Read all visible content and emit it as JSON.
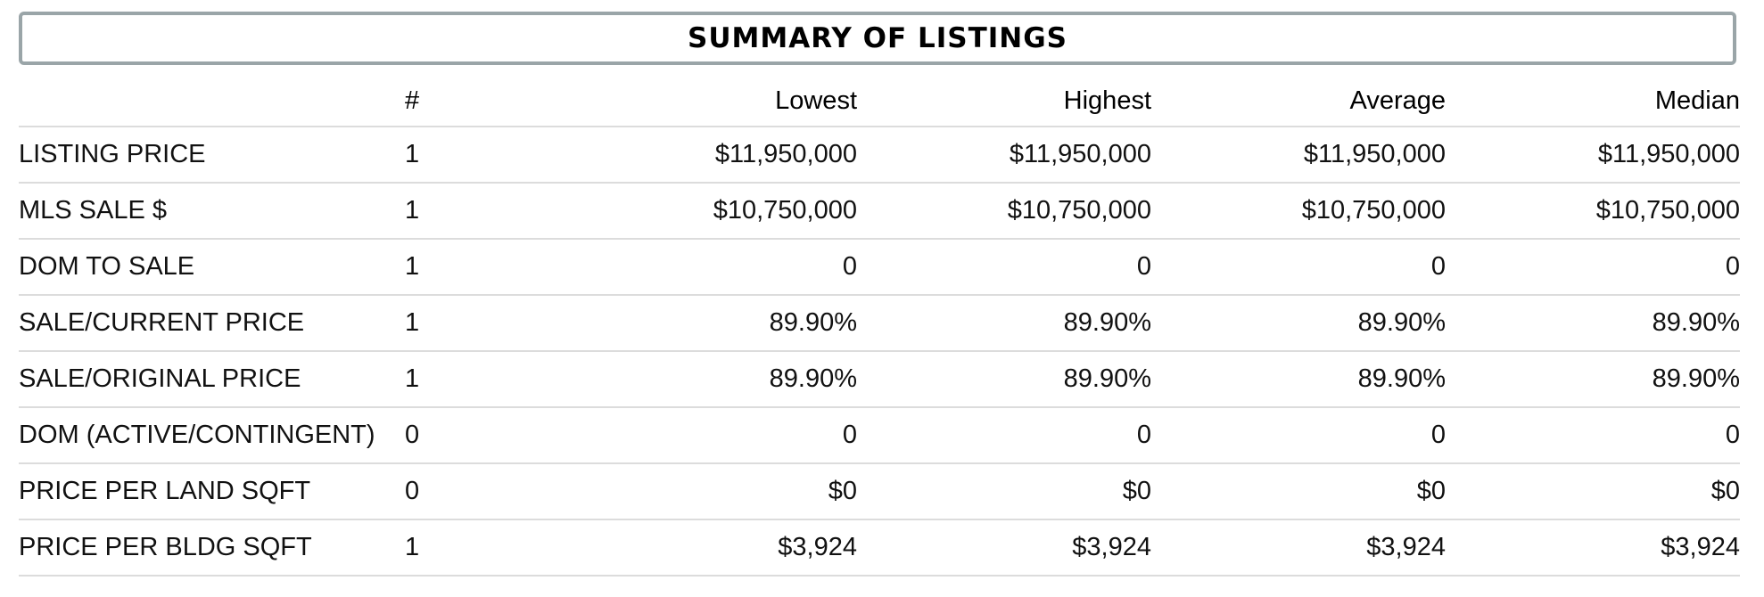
{
  "title": "SUMMARY OF LISTINGS",
  "columns": [
    "",
    "#",
    "Lowest",
    "Highest",
    "Average",
    "Median"
  ],
  "rows": [
    {
      "label": "LISTING PRICE",
      "count": "1",
      "lowest": "$11,950,000",
      "highest": "$11,950,000",
      "average": "$11,950,000",
      "median": "$11,950,000"
    },
    {
      "label": "MLS SALE $",
      "count": "1",
      "lowest": "$10,750,000",
      "highest": "$10,750,000",
      "average": "$10,750,000",
      "median": "$10,750,000"
    },
    {
      "label": "DOM TO SALE",
      "count": "1",
      "lowest": "0",
      "highest": "0",
      "average": "0",
      "median": "0"
    },
    {
      "label": "SALE/CURRENT PRICE",
      "count": "1",
      "lowest": "89.90%",
      "highest": "89.90%",
      "average": "89.90%",
      "median": "89.90%"
    },
    {
      "label": "SALE/ORIGINAL PRICE",
      "count": "1",
      "lowest": "89.90%",
      "highest": "89.90%",
      "average": "89.90%",
      "median": "89.90%"
    },
    {
      "label": "DOM (ACTIVE/CONTINGENT)",
      "count": "0",
      "lowest": "0",
      "highest": "0",
      "average": "0",
      "median": "0"
    },
    {
      "label": "PRICE PER LAND SQFT",
      "count": "0",
      "lowest": "$0",
      "highest": "$0",
      "average": "$0",
      "median": "$0"
    },
    {
      "label": "PRICE PER BLDG SQFT",
      "count": "1",
      "lowest": "$3,924",
      "highest": "$3,924",
      "average": "$3,924",
      "median": "$3,924"
    }
  ]
}
